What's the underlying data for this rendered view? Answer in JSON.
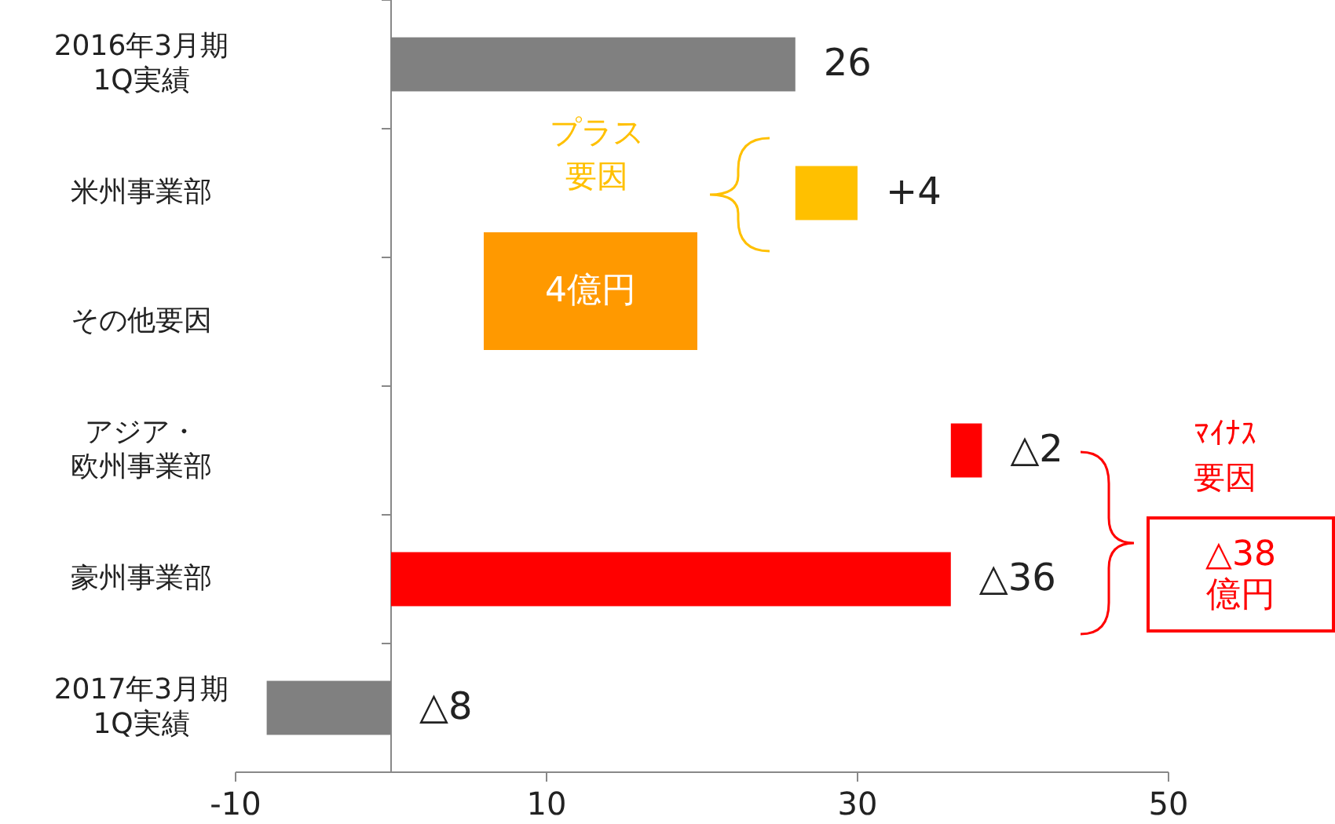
{
  "chart_data": {
    "type": "bar",
    "orientation": "horizontal",
    "categories": [
      "2016年3月期\n1Q実績",
      "米州事業部",
      "その他要因",
      "アジア・欧州事業部",
      "豪州事業部",
      "2017年3月期\n1Q実績"
    ],
    "base": [
      0,
      26,
      null,
      36,
      0,
      0
    ],
    "values": [
      26,
      4,
      null,
      2,
      36,
      -8
    ],
    "value_labels": [
      "26",
      "+4",
      null,
      "△2",
      "△36",
      "△8"
    ],
    "colors": [
      "#808080",
      "#ffc000",
      null,
      "#ff0000",
      "#ff0000",
      "#808080"
    ],
    "xlim": [
      -10,
      50
    ],
    "xticks": [
      -10,
      10,
      30,
      50
    ],
    "annotations": [
      "プラス",
      "要因",
      "4億円",
      "ﾏｲﾅｽ",
      "要因",
      "△38\n億円"
    ]
  }
}
